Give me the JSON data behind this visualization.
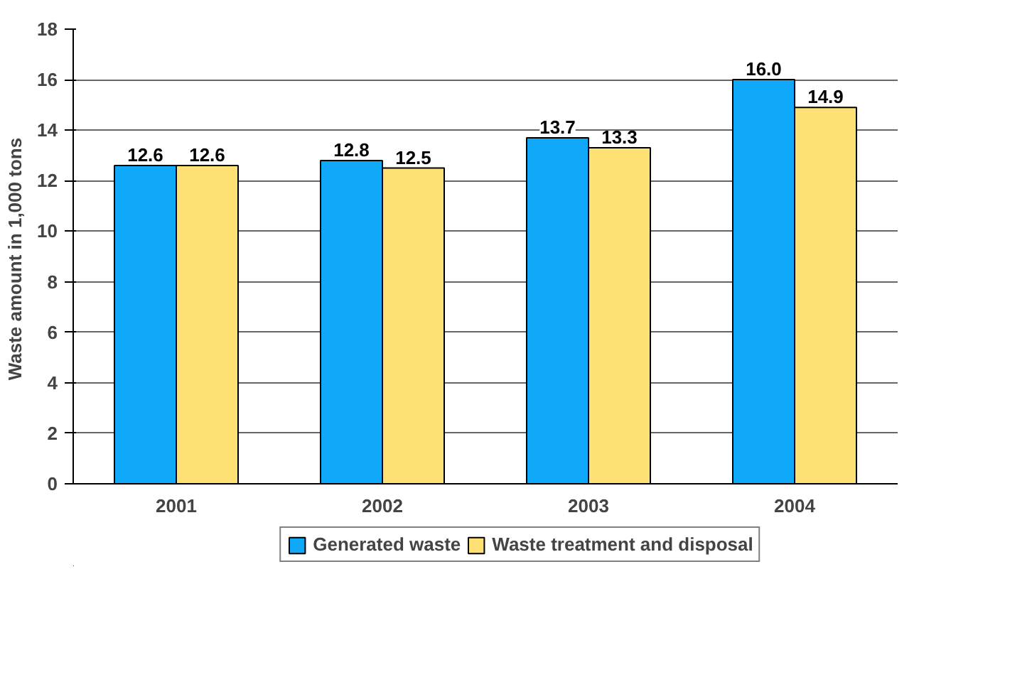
{
  "chart_data": {
    "type": "bar",
    "ylabel": "Waste amount  in 1,000 tons",
    "categories": [
      "2001",
      "2002",
      "2003",
      "2004"
    ],
    "series": [
      {
        "name": "Generated waste",
        "color": "#10a8f8",
        "values": [
          12.6,
          12.8,
          13.7,
          16.0
        ],
        "value_labels": [
          "12.6",
          "12.8",
          "13.7",
          "16.0"
        ]
      },
      {
        "name": "Waste treatment and disposal",
        "color": "#ffe074",
        "values": [
          12.6,
          12.5,
          13.3,
          14.9
        ],
        "value_labels": [
          "12.6",
          "12.5",
          "13.3",
          "14.9"
        ]
      }
    ],
    "ylim": [
      0,
      18
    ],
    "yticks": [
      0,
      2,
      4,
      6,
      8,
      10,
      12,
      14,
      16,
      18
    ],
    "grid": "y",
    "legend": "bottom"
  }
}
